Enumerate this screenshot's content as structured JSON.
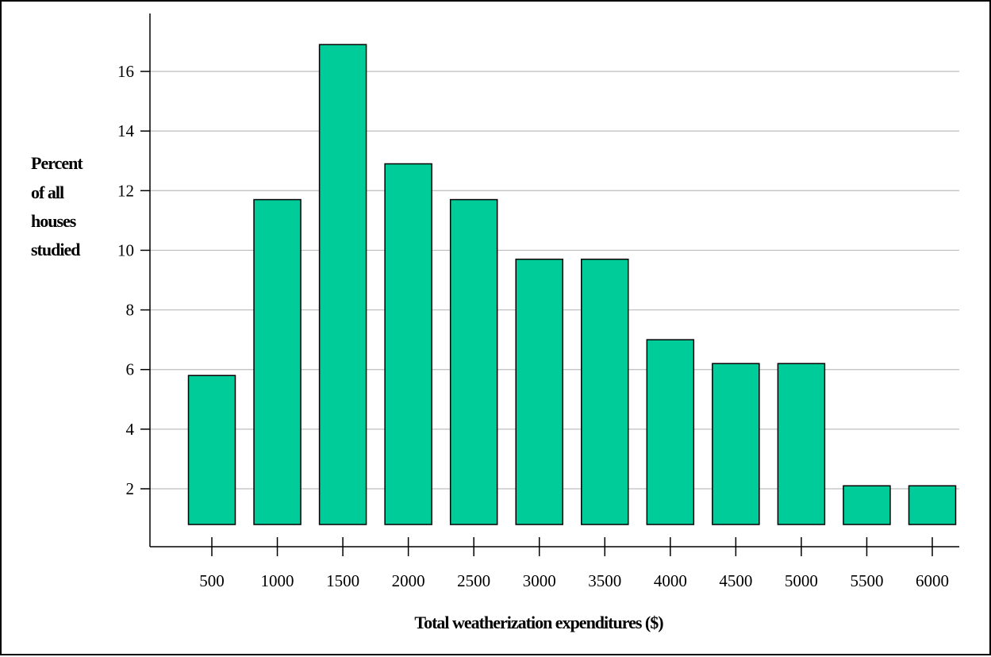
{
  "chart_data": {
    "type": "bar",
    "title": "",
    "xlabel": "Total weatherization expenditures ($)",
    "ylabel_lines": [
      "Percent",
      "of all",
      "houses",
      "studied"
    ],
    "categories": [
      "500",
      "1000",
      "1500",
      "2000",
      "2500",
      "3000",
      "3500",
      "4000",
      "4500",
      "5000",
      "5500",
      "6000"
    ],
    "values": [
      5.8,
      11.7,
      16.9,
      12.9,
      11.7,
      9.7,
      9.7,
      7.0,
      6.2,
      6.2,
      2.1,
      2.1
    ],
    "yticks": [
      "2",
      "4",
      "6",
      "8",
      "10",
      "12",
      "14",
      "16"
    ],
    "ytick_values": [
      2,
      4,
      6,
      8,
      10,
      12,
      14,
      16
    ],
    "ylim": [
      0.8,
      17.0
    ],
    "grid": true,
    "bar_color": "#00CC99",
    "grid_color": "#BDBDBD"
  }
}
